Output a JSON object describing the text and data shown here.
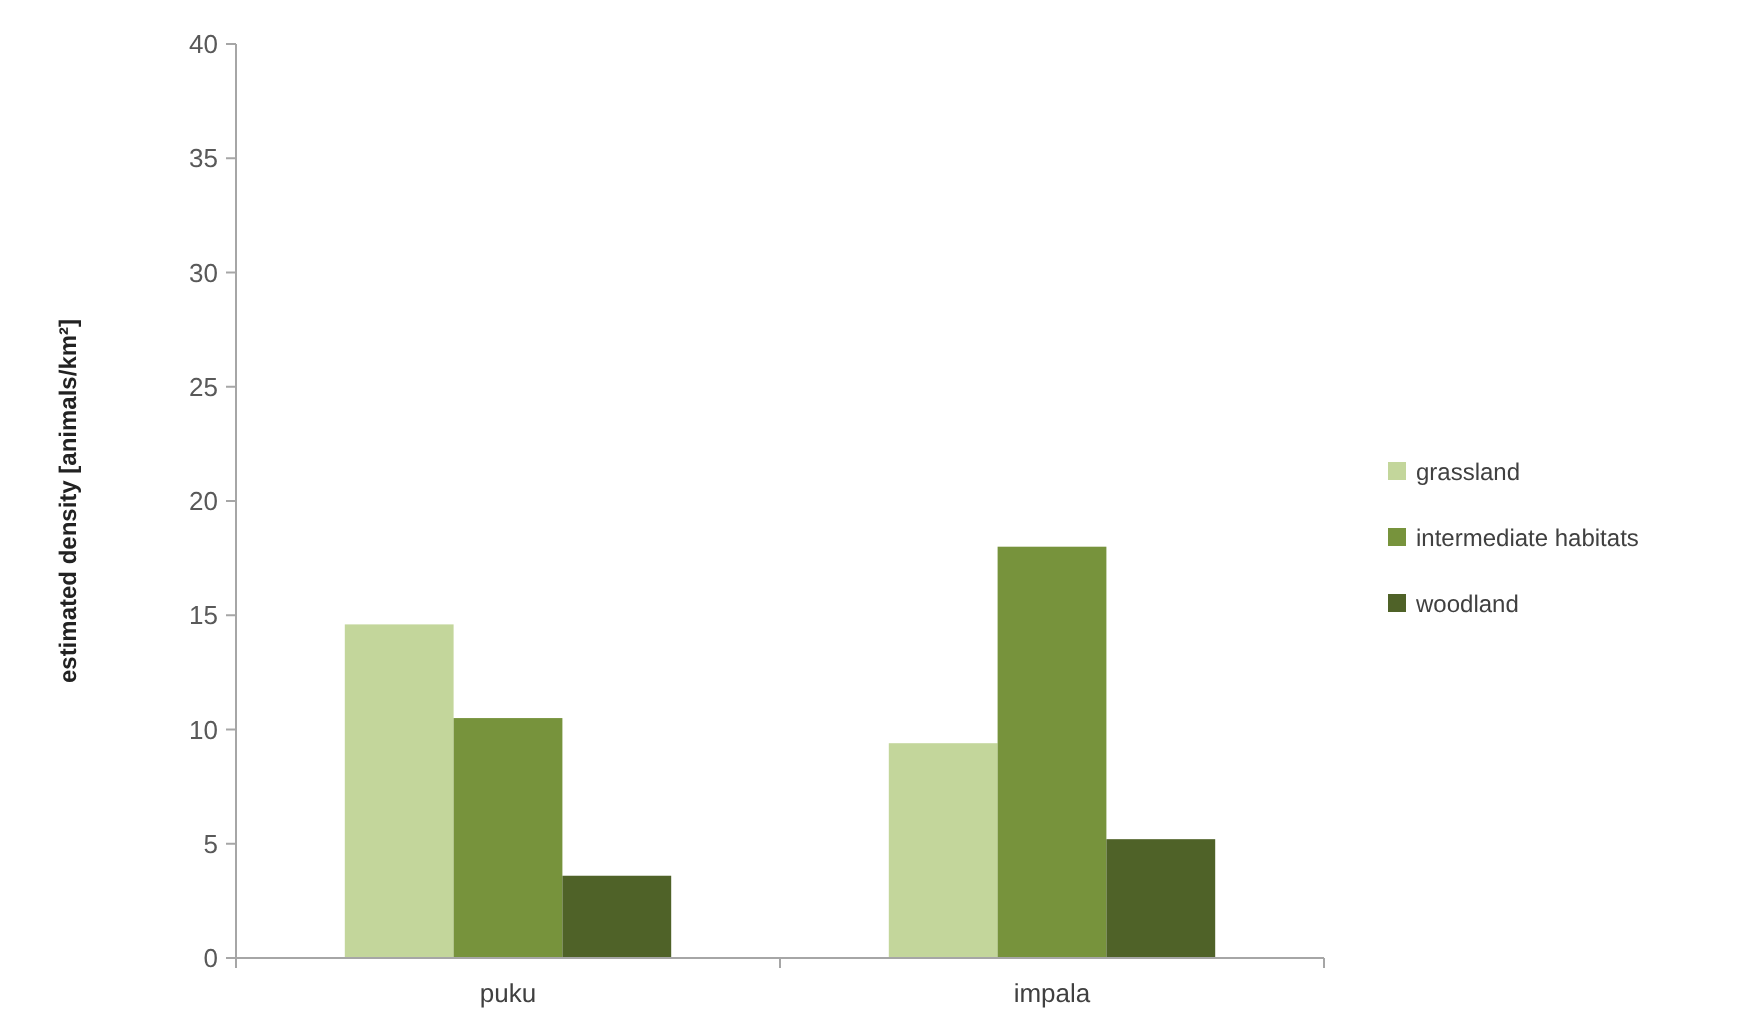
{
  "chart_data": {
    "type": "bar",
    "ylabel": "estimated density [animals/km²]",
    "categories": [
      "puku",
      "impala"
    ],
    "series": [
      {
        "name": "grassland",
        "color": "#c3d69b",
        "values": [
          14.6,
          9.4
        ]
      },
      {
        "name": "intermediate habitats",
        "color": "#77933c",
        "values": [
          10.5,
          18.0
        ]
      },
      {
        "name": "woodland",
        "color": "#4f6228",
        "values": [
          3.6,
          5.2
        ]
      }
    ],
    "ylim": [
      0,
      40
    ],
    "yticks": [
      0,
      5,
      10,
      15,
      20,
      25,
      30,
      35,
      40
    ],
    "grid": false,
    "legend": "right"
  }
}
